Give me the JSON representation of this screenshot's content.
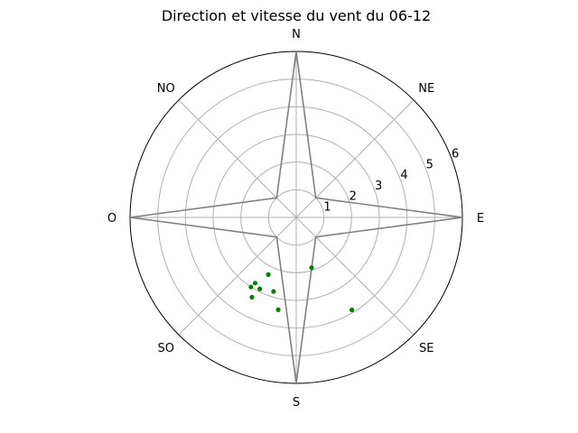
{
  "chart_data": {
    "type": "scatter",
    "projection": "polar",
    "title": "Direction et vitesse du vent du 06-12",
    "direction_labels": [
      "N",
      "NE",
      "E",
      "SE",
      "S",
      "SO",
      "O",
      "NO"
    ],
    "direction_angles": [
      0,
      45,
      90,
      135,
      180,
      225,
      270,
      315
    ],
    "radial_ticks": [
      1,
      2,
      3,
      4,
      5,
      6
    ],
    "rlim": [
      0,
      6
    ],
    "grid": true,
    "colors": {
      "points": "#008000",
      "rose": "#808080",
      "grid": "#b0b0b0",
      "frame": "#000000"
    },
    "rose_outline": [
      {
        "angle": 0,
        "r": 6
      },
      {
        "angle": 45,
        "r": 1
      },
      {
        "angle": 90,
        "r": 6
      },
      {
        "angle": 135,
        "r": 1
      },
      {
        "angle": 180,
        "r": 6
      },
      {
        "angle": 225,
        "r": 1
      },
      {
        "angle": 270,
        "r": 6
      },
      {
        "angle": 315,
        "r": 1
      }
    ],
    "points": [
      {
        "angle": 163,
        "r": 1.9
      },
      {
        "angle": 206,
        "r": 2.3
      },
      {
        "angle": 212,
        "r": 2.8
      },
      {
        "angle": 213,
        "r": 3.0
      },
      {
        "angle": 207,
        "r": 2.9
      },
      {
        "angle": 197,
        "r": 2.8
      },
      {
        "angle": 209,
        "r": 3.3
      },
      {
        "angle": 191,
        "r": 3.4
      },
      {
        "angle": 149,
        "r": 3.9
      }
    ]
  }
}
